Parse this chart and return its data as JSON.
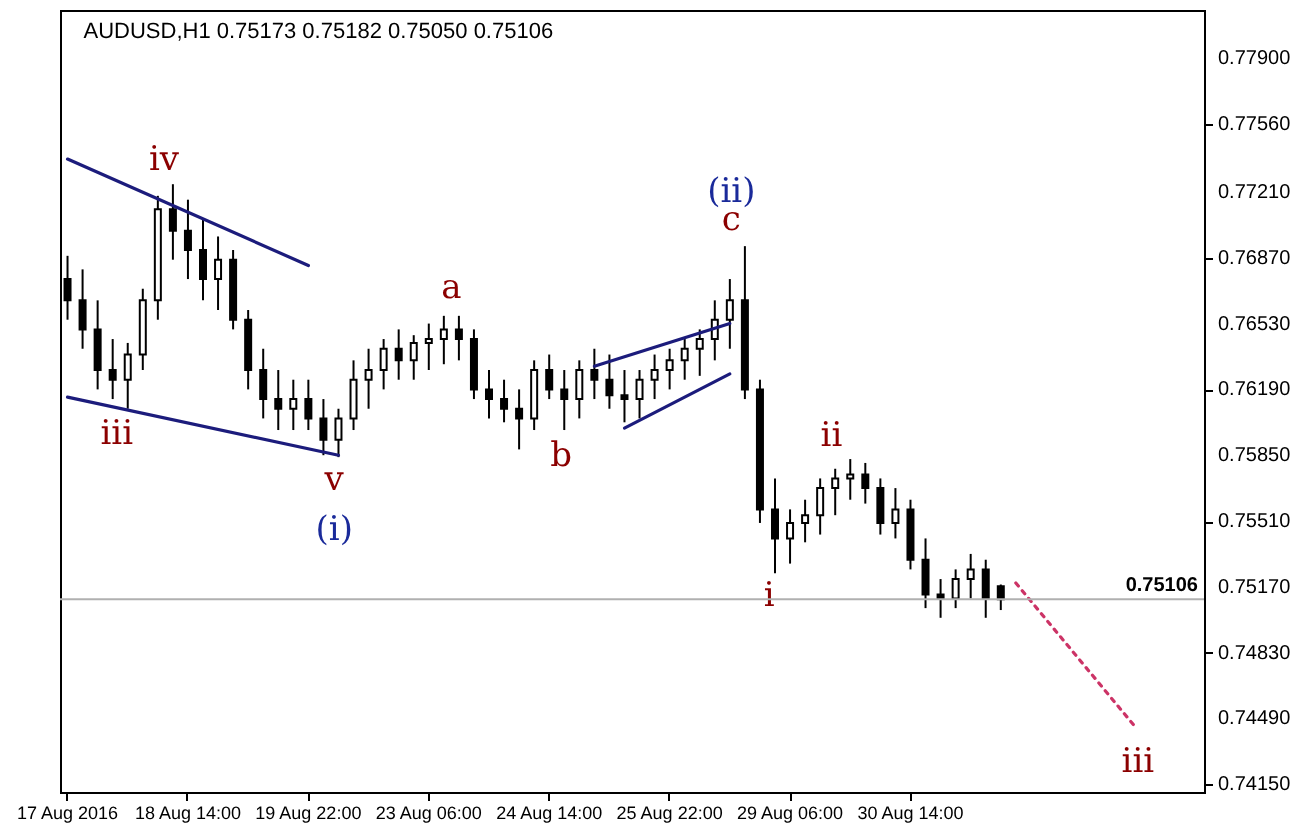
{
  "chart_data": {
    "type": "candlestick",
    "title": "AUDUSD,H1  0.75173 0.75182 0.75050 0.75106",
    "color": "#000000",
    "categories": [
      "17 Aug 2016",
      null,
      null,
      null,
      null,
      null,
      null,
      null,
      "18 Aug 14:00",
      null,
      null,
      null,
      null,
      null,
      null,
      null,
      "19 Aug 22:00",
      null,
      null,
      null,
      null,
      null,
      null,
      null,
      "23 Aug 06:00",
      null,
      null,
      null,
      null,
      null,
      null,
      null,
      "24 Aug 14:00",
      null,
      null,
      null,
      null,
      null,
      null,
      null,
      "25 Aug 22:00",
      null,
      null,
      null,
      null,
      null,
      null,
      null,
      "29 Aug 06:00",
      null,
      null,
      null,
      null,
      null,
      null,
      null,
      "30 Aug 14:00",
      null,
      null,
      null,
      null,
      null,
      null,
      null,
      null,
      null,
      null,
      null,
      null,
      null,
      null,
      null,
      null,
      null,
      null,
      null
    ],
    "ohlc": [
      [
        0.7676,
        0.7688,
        0.7655,
        0.7665
      ],
      [
        0.7665,
        0.7681,
        0.764,
        0.765
      ],
      [
        0.765,
        0.7665,
        0.7619,
        0.7629
      ],
      [
        0.7629,
        0.7645,
        0.7614,
        0.7624
      ],
      [
        0.7624,
        0.7643,
        0.7609,
        0.7637
      ],
      [
        0.7637,
        0.7671,
        0.7629,
        0.7665
      ],
      [
        0.7665,
        0.7719,
        0.7655,
        0.7712
      ],
      [
        0.7712,
        0.7725,
        0.7686,
        0.7701
      ],
      [
        0.7701,
        0.7717,
        0.7676,
        0.7691
      ],
      [
        0.7691,
        0.7707,
        0.7665,
        0.7676
      ],
      [
        0.7676,
        0.7698,
        0.766,
        0.7686
      ],
      [
        0.7686,
        0.7691,
        0.765,
        0.7655
      ],
      [
        0.7655,
        0.766,
        0.7619,
        0.7629
      ],
      [
        0.7629,
        0.764,
        0.7604,
        0.7614
      ],
      [
        0.7614,
        0.7629,
        0.7598,
        0.7609
      ],
      [
        0.7609,
        0.7624,
        0.7598,
        0.7614
      ],
      [
        0.7614,
        0.7624,
        0.7598,
        0.7604
      ],
      [
        0.7604,
        0.7614,
        0.7585,
        0.7593
      ],
      [
        0.7593,
        0.7609,
        0.7584,
        0.7604
      ],
      [
        0.7604,
        0.7634,
        0.7598,
        0.7624
      ],
      [
        0.7624,
        0.764,
        0.7609,
        0.7629
      ],
      [
        0.7629,
        0.7645,
        0.7619,
        0.764
      ],
      [
        0.764,
        0.765,
        0.7624,
        0.7634
      ],
      [
        0.7634,
        0.7647,
        0.7624,
        0.7643
      ],
      [
        0.7643,
        0.7653,
        0.7629,
        0.7645
      ],
      [
        0.7645,
        0.7657,
        0.7632,
        0.765
      ],
      [
        0.765,
        0.7657,
        0.7634,
        0.7645
      ],
      [
        0.7645,
        0.765,
        0.7614,
        0.7619
      ],
      [
        0.7619,
        0.7629,
        0.7604,
        0.7614
      ],
      [
        0.7614,
        0.7624,
        0.7602,
        0.7609
      ],
      [
        0.7609,
        0.7619,
        0.7588,
        0.7604
      ],
      [
        0.7604,
        0.7634,
        0.7598,
        0.7629
      ],
      [
        0.7629,
        0.7637,
        0.7614,
        0.7619
      ],
      [
        0.7619,
        0.7629,
        0.7598,
        0.7614
      ],
      [
        0.7614,
        0.7634,
        0.7604,
        0.7629
      ],
      [
        0.7629,
        0.764,
        0.7614,
        0.7624
      ],
      [
        0.7624,
        0.7637,
        0.7609,
        0.7616
      ],
      [
        0.7616,
        0.7629,
        0.7602,
        0.7614
      ],
      [
        0.7614,
        0.7629,
        0.7604,
        0.7624
      ],
      [
        0.7624,
        0.7637,
        0.7614,
        0.7629
      ],
      [
        0.7629,
        0.764,
        0.7619,
        0.7634
      ],
      [
        0.7634,
        0.7645,
        0.7624,
        0.764
      ],
      [
        0.764,
        0.765,
        0.7626,
        0.7645
      ],
      [
        0.7645,
        0.7665,
        0.7634,
        0.7655
      ],
      [
        0.7655,
        0.7676,
        0.764,
        0.7665
      ],
      [
        0.7665,
        0.7693,
        0.7614,
        0.7619
      ],
      [
        0.7619,
        0.7624,
        0.755,
        0.7557
      ],
      [
        0.7557,
        0.7573,
        0.7524,
        0.7542
      ],
      [
        0.7542,
        0.7557,
        0.7529,
        0.755
      ],
      [
        0.755,
        0.7562,
        0.754,
        0.7554
      ],
      [
        0.7554,
        0.7573,
        0.7544,
        0.7568
      ],
      [
        0.7568,
        0.7578,
        0.7554,
        0.7573
      ],
      [
        0.7573,
        0.7583,
        0.7562,
        0.7575
      ],
      [
        0.7575,
        0.7581,
        0.756,
        0.7568
      ],
      [
        0.7568,
        0.7573,
        0.7544,
        0.755
      ],
      [
        0.755,
        0.7568,
        0.7542,
        0.7557
      ],
      [
        0.7557,
        0.7562,
        0.7526,
        0.7531
      ],
      [
        0.7531,
        0.7542,
        0.7506,
        0.7513
      ],
      [
        0.7513,
        0.7521,
        0.7501,
        0.7511
      ],
      [
        0.7511,
        0.7526,
        0.7506,
        0.7521
      ],
      [
        0.7521,
        0.7534,
        0.7511,
        0.7526
      ],
      [
        0.7526,
        0.7531,
        0.7501,
        0.7511
      ],
      [
        0.75173,
        0.75182,
        0.7505,
        0.75106
      ],
      null,
      null,
      null,
      null,
      null,
      null,
      null,
      null,
      null,
      null,
      null,
      null,
      null
    ],
    "series": [
      {
        "type": "line",
        "color": "#1c1c7c",
        "line_style": "solid",
        "values": [
          0.7738,
          null,
          null,
          null,
          null,
          null,
          null,
          null,
          null,
          null,
          null,
          null,
          null,
          null,
          null,
          null,
          0.7683,
          null,
          null,
          null,
          null,
          null,
          null,
          null,
          null,
          null,
          null,
          null,
          null,
          null,
          null,
          null,
          null,
          null,
          null,
          null,
          null,
          null,
          null,
          null,
          null,
          null,
          null,
          null,
          null,
          null,
          null,
          null,
          null,
          null,
          null,
          null,
          null,
          null,
          null,
          null,
          null,
          null,
          null,
          null,
          null,
          null,
          null,
          null,
          null,
          null,
          null,
          null,
          null,
          null,
          null,
          null,
          null,
          null,
          null,
          null
        ]
      },
      {
        "type": "line",
        "color": "#1c1c7c",
        "line_style": "solid",
        "values": [
          0.7615,
          null,
          null,
          null,
          null,
          null,
          null,
          null,
          null,
          null,
          null,
          null,
          null,
          null,
          null,
          null,
          null,
          null,
          0.7585,
          null,
          null,
          null,
          null,
          null,
          null,
          null,
          null,
          null,
          null,
          null,
          null,
          null,
          null,
          null,
          null,
          null,
          null,
          null,
          null,
          null,
          null,
          null,
          null,
          null,
          null,
          null,
          null,
          null,
          null,
          null,
          null,
          null,
          null,
          null,
          null,
          null,
          null,
          null,
          null,
          null,
          null,
          null,
          null,
          null,
          null,
          null,
          null,
          null,
          null,
          null,
          null,
          null,
          null,
          null,
          null,
          null
        ]
      },
      {
        "type": "line",
        "color": "#1c1c7c",
        "line_style": "solid",
        "values": [
          null,
          null,
          null,
          null,
          null,
          null,
          null,
          null,
          null,
          null,
          null,
          null,
          null,
          null,
          null,
          null,
          null,
          null,
          null,
          null,
          null,
          null,
          null,
          null,
          null,
          null,
          null,
          null,
          null,
          null,
          null,
          null,
          null,
          null,
          null,
          0.7631,
          null,
          null,
          null,
          null,
          null,
          null,
          null,
          null,
          0.7653,
          null,
          null,
          null,
          null,
          null,
          null,
          null,
          null,
          null,
          null,
          null,
          null,
          null,
          null,
          null,
          null,
          null,
          null,
          null,
          null,
          null,
          null,
          null,
          null,
          null,
          null,
          null,
          null,
          null,
          null,
          null
        ]
      },
      {
        "type": "line",
        "color": "#1c1c7c",
        "line_style": "solid",
        "values": [
          null,
          null,
          null,
          null,
          null,
          null,
          null,
          null,
          null,
          null,
          null,
          null,
          null,
          null,
          null,
          null,
          null,
          null,
          null,
          null,
          null,
          null,
          null,
          null,
          null,
          null,
          null,
          null,
          null,
          null,
          null,
          null,
          null,
          null,
          null,
          null,
          null,
          0.7599,
          null,
          null,
          null,
          null,
          null,
          null,
          0.7627,
          null,
          null,
          null,
          null,
          null,
          null,
          null,
          null,
          null,
          null,
          null,
          null,
          null,
          null,
          null,
          null,
          null,
          null,
          null,
          null,
          null,
          null,
          null,
          null,
          null,
          null,
          null,
          null,
          null,
          null,
          null
        ]
      },
      {
        "type": "line",
        "color": "#cc3366",
        "line_style": "dotted",
        "values": [
          null,
          null,
          null,
          null,
          null,
          null,
          null,
          null,
          null,
          null,
          null,
          null,
          null,
          null,
          null,
          null,
          null,
          null,
          null,
          null,
          null,
          null,
          null,
          null,
          null,
          null,
          null,
          null,
          null,
          null,
          null,
          null,
          null,
          null,
          null,
          null,
          null,
          null,
          null,
          null,
          null,
          null,
          null,
          null,
          null,
          null,
          null,
          null,
          null,
          null,
          null,
          null,
          null,
          null,
          null,
          null,
          null,
          null,
          null,
          null,
          null,
          null,
          null,
          0.7519,
          null,
          null,
          null,
          null,
          null,
          null,
          null,
          0.7444,
          null,
          null,
          null,
          null
        ]
      }
    ],
    "annotations": [
      "iv",
      "iii",
      "v",
      "(i)",
      "a",
      "b",
      "(ii)",
      "c",
      "i",
      "ii",
      "iii"
    ],
    "ref_lines": [
      {
        "axis": "y",
        "value": 0.75106,
        "label": "0.75106"
      }
    ],
    "ylim": [
      0.7411,
      0.7815
    ],
    "yticks": [
      {
        "value": 0.779,
        "label": "0.77900"
      },
      {
        "value": 0.7756,
        "label": "0.77560"
      },
      {
        "value": 0.7721,
        "label": "0.77210"
      },
      {
        "value": 0.7687,
        "label": "0.76870"
      },
      {
        "value": 0.7653,
        "label": "0.76530"
      },
      {
        "value": 0.7619,
        "label": "0.76190"
      },
      {
        "value": 0.7585,
        "label": "0.75850"
      },
      {
        "value": 0.7551,
        "label": "0.75510"
      },
      {
        "value": 0.7517,
        "label": "0.75170"
      },
      {
        "value": 0.7483,
        "label": "0.74830"
      },
      {
        "value": 0.7449,
        "label": "0.74490"
      },
      {
        "value": 0.7415,
        "label": "0.74150"
      }
    ]
  }
}
